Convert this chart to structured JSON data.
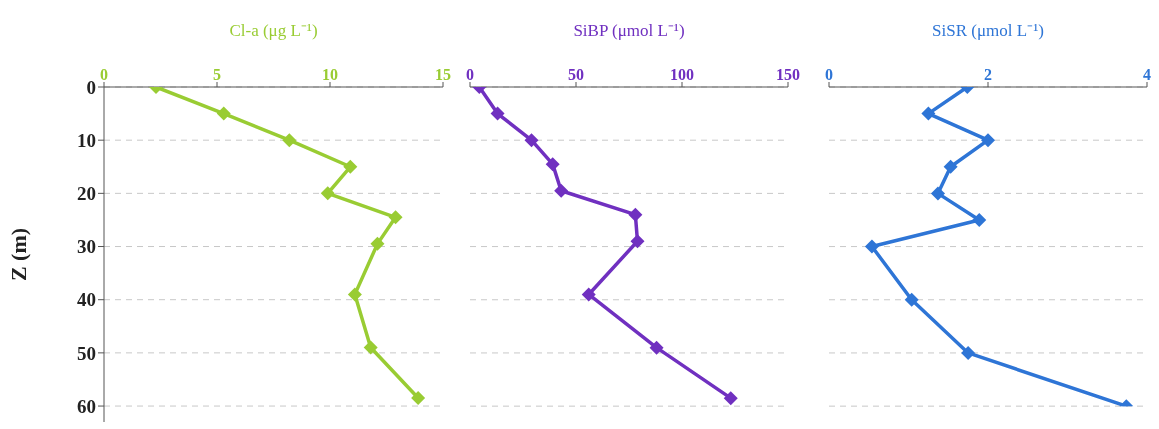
{
  "chart_data": [
    {
      "type": "line",
      "xlabel": "Cl-a  (μg L⁻¹)",
      "ylabel": "Z (m)",
      "xlim": [
        0,
        15
      ],
      "xticks": [
        0,
        5,
        10,
        15
      ],
      "ylim": [
        63,
        0
      ],
      "yticks": [
        0,
        10,
        20,
        30,
        40,
        50,
        60
      ],
      "grid": "y",
      "marker": "diamond",
      "line_style": "solid",
      "series": [
        {
          "color": "#99cc33",
          "x": [
            2.3,
            5.3,
            8.2,
            10.9,
            9.9,
            12.9,
            12.1,
            11.1,
            11.8,
            13.9
          ],
          "values": [
            0,
            5,
            10,
            15,
            20,
            24.5,
            29.5,
            39,
            49,
            58.5
          ]
        }
      ]
    },
    {
      "type": "line",
      "xlabel": "SiBP  (μmol L⁻¹)",
      "xlim": [
        0,
        150
      ],
      "xticks": [
        0,
        50,
        100,
        150
      ],
      "ylim": [
        60,
        0
      ],
      "yticks": [
        0,
        10,
        20,
        30,
        40,
        50,
        60
      ],
      "grid": "y",
      "marker": "diamond",
      "line_style": "solid",
      "tick_labels": "x",
      "series": [
        {
          "color": "#7030c0",
          "x": [
            4.4,
            13,
            29,
            39,
            43,
            78,
            79,
            56,
            88,
            123
          ],
          "values": [
            0,
            5,
            10,
            14.5,
            19.5,
            24,
            29,
            39,
            49,
            58.5
          ]
        }
      ]
    },
    {
      "type": "line",
      "xlabel": "SiSR (μmol L⁻¹)",
      "xlim": [
        0,
        4
      ],
      "xticks": [
        0,
        2,
        4
      ],
      "ylim": [
        60,
        0
      ],
      "yticks": [
        0,
        10,
        20,
        30,
        40,
        50,
        60
      ],
      "grid": "y",
      "marker": "diamond",
      "line_style": "solid",
      "tick_labels": "x",
      "series": [
        {
          "color": "#2e75d6",
          "x": [
            1.74,
            1.25,
            2.0,
            1.53,
            1.37,
            1.89,
            0.54,
            1.04,
            1.75,
            3.74
          ],
          "values": [
            0,
            5,
            10,
            15,
            20,
            25,
            30,
            40,
            50,
            60
          ]
        }
      ]
    }
  ]
}
